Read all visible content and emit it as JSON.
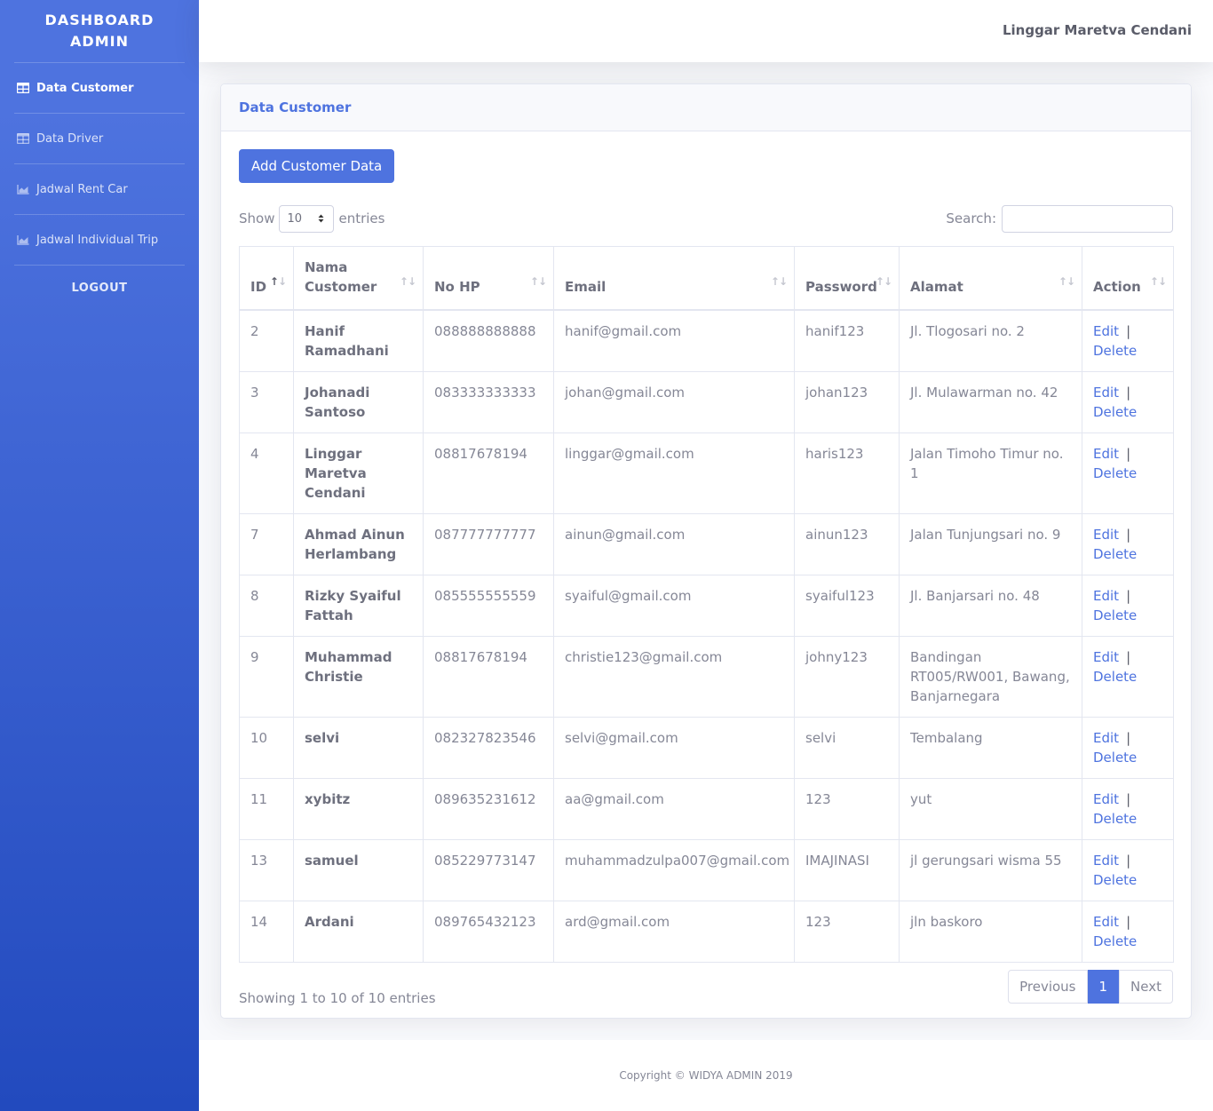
{
  "sidebar": {
    "brand_line1": "DASHBOARD",
    "brand_line2": "ADMIN",
    "items": [
      {
        "label": "Data Customer",
        "icon": "table-icon"
      },
      {
        "label": "Data Driver",
        "icon": "table-icon"
      },
      {
        "label": "Jadwal Rent Car",
        "icon": "chart-area-icon"
      },
      {
        "label": "Jadwal Individual Trip",
        "icon": "chart-area-icon"
      }
    ],
    "logout_label": "LOGOUT"
  },
  "topbar": {
    "user_name": "Linggar Maretva Cendani"
  },
  "card": {
    "title": "Data Customer",
    "add_button": "Add Customer Data"
  },
  "datatable": {
    "show_label": "Show",
    "entries_label": "entries",
    "page_length": "10",
    "search_label": "Search:",
    "search_value": "",
    "columns": [
      "ID",
      "Nama Customer",
      "No HP",
      "Email",
      "Password",
      "Alamat",
      "Action"
    ],
    "rows": [
      {
        "id": "2",
        "name": "Hanif Ramadhani",
        "hp": "088888888888",
        "email": "hanif@gmail.com",
        "password": "hanif123",
        "alamat": "Jl. Tlogosari no. 2"
      },
      {
        "id": "3",
        "name": "Johanadi Santoso",
        "hp": "083333333333",
        "email": "johan@gmail.com",
        "password": "johan123",
        "alamat": "Jl. Mulawarman no. 42"
      },
      {
        "id": "4",
        "name": "Linggar Maretva Cendani",
        "hp": "08817678194",
        "email": "linggar@gmail.com",
        "password": "haris123",
        "alamat": "Jalan Timoho Timur no. 1"
      },
      {
        "id": "7",
        "name": "Ahmad Ainun Herlambang",
        "hp": "087777777777",
        "email": "ainun@gmail.com",
        "password": "ainun123",
        "alamat": "Jalan Tunjungsari no. 9"
      },
      {
        "id": "8",
        "name": "Rizky Syaiful Fattah",
        "hp": "085555555559",
        "email": "syaiful@gmail.com",
        "password": "syaiful123",
        "alamat": "Jl. Banjarsari no. 48"
      },
      {
        "id": "9",
        "name": "Muhammad Christie",
        "hp": "08817678194",
        "email": "christie123@gmail.com",
        "password": "johny123",
        "alamat": "Bandingan RT005/RW001, Bawang, Banjarnegara"
      },
      {
        "id": "10",
        "name": "selvi",
        "hp": "082327823546",
        "email": "selvi@gmail.com",
        "password": "selvi",
        "alamat": "Tembalang"
      },
      {
        "id": "11",
        "name": "xybitz",
        "hp": "089635231612",
        "email": "aa@gmail.com",
        "password": "123",
        "alamat": "yut"
      },
      {
        "id": "13",
        "name": "samuel",
        "hp": "085229773147",
        "email": "muhammadzulpa007@gmail.com",
        "password": "IMAJINASI",
        "alamat": "jl gerungsari wisma 55"
      },
      {
        "id": "14",
        "name": "Ardani",
        "hp": "089765432123",
        "email": "ard@gmail.com",
        "password": "123",
        "alamat": "jln baskoro"
      }
    ],
    "action_edit": "Edit",
    "action_sep": "|",
    "action_delete": "Delete",
    "info": "Showing 1 to 10 of 10 entries",
    "pagination": {
      "previous": "Previous",
      "current": "1",
      "next": "Next"
    }
  },
  "footer": {
    "copyright": "Copyright © WIDYA ADMIN 2019"
  },
  "colors": {
    "primary": "#4e73df",
    "sidebar_bottom": "#224abe",
    "text": "#858796"
  }
}
